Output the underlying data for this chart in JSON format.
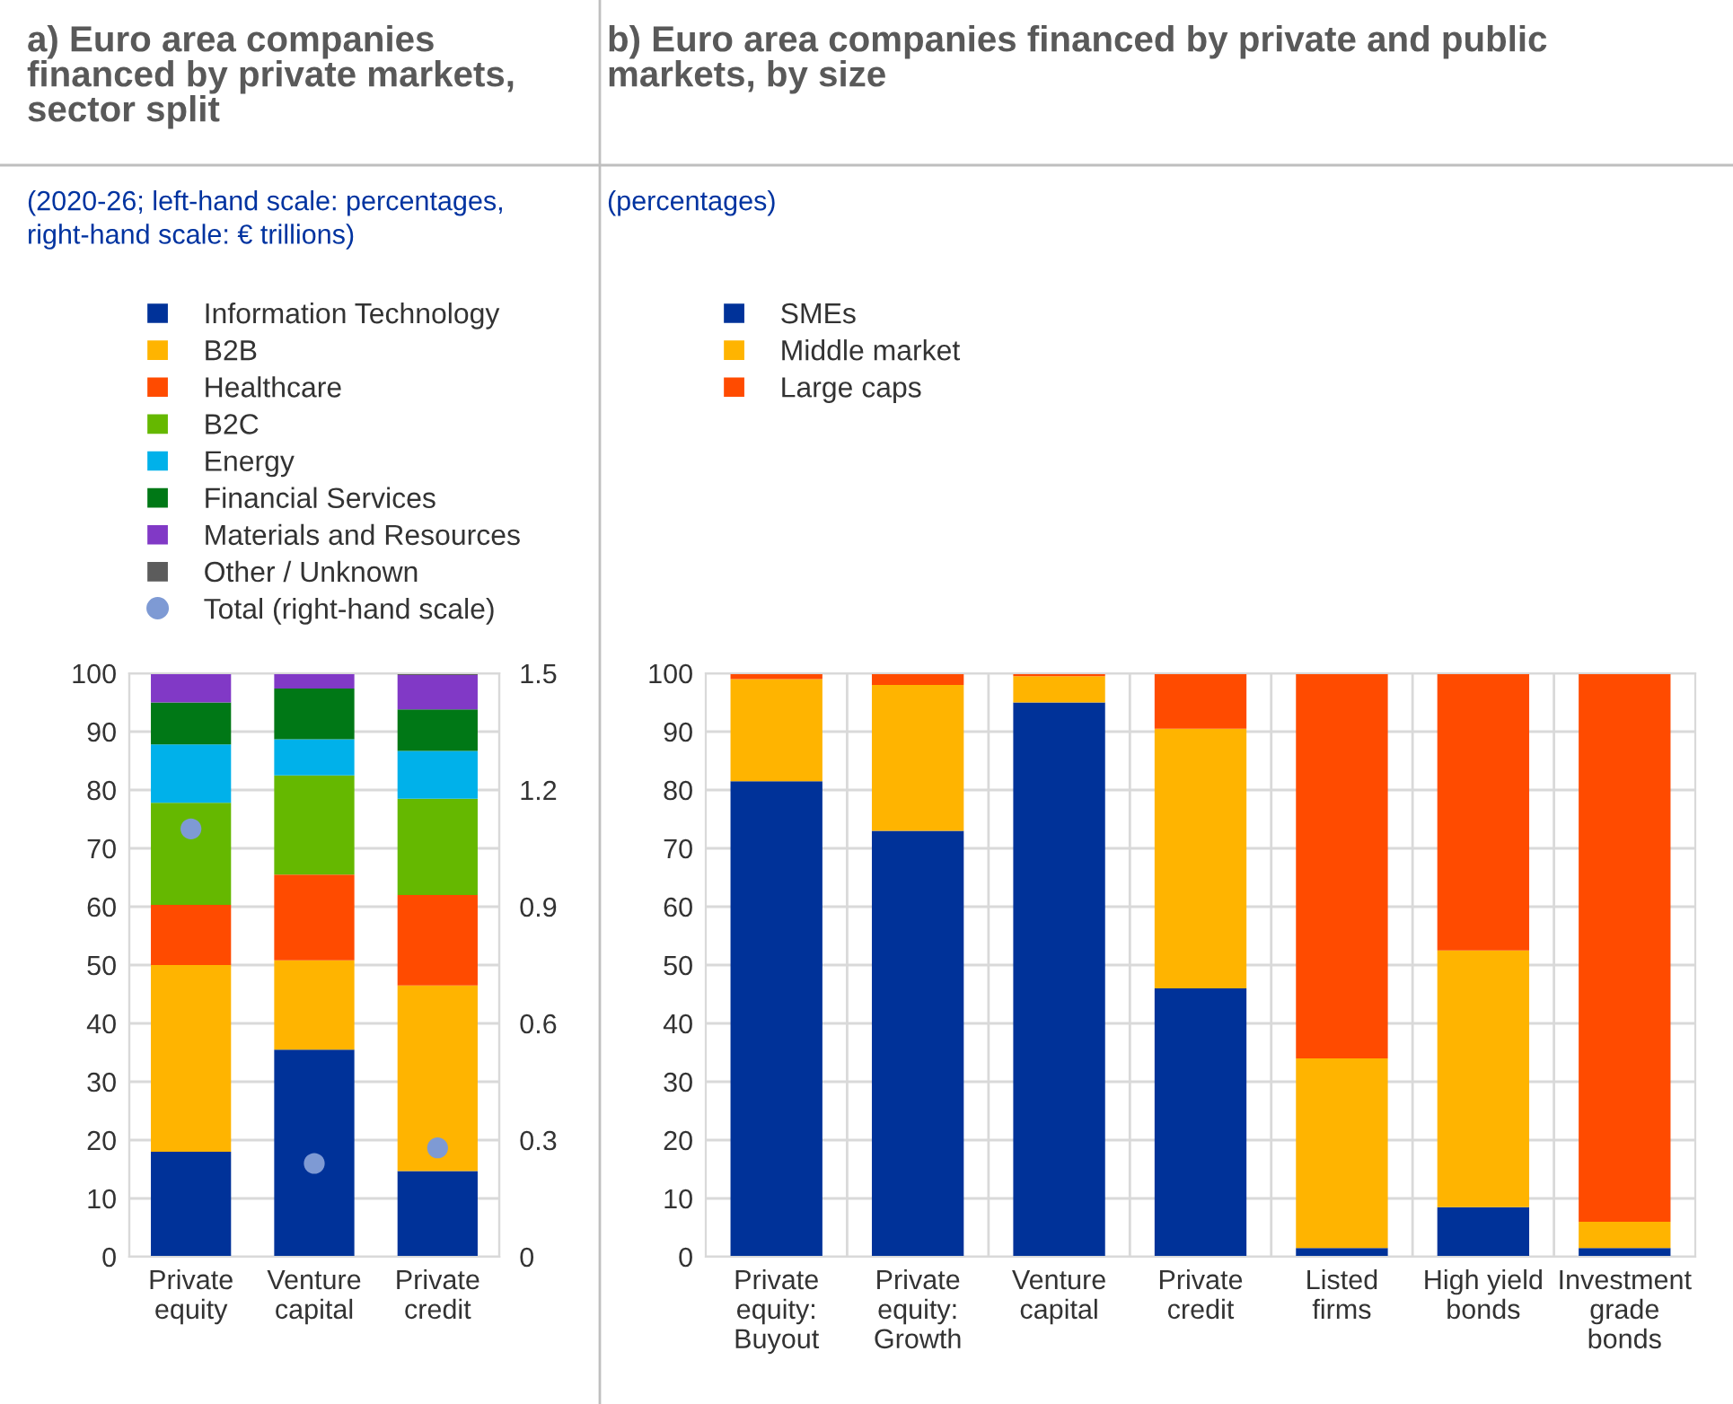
{
  "chart_data": [
    {
      "type": "bar",
      "title": "a) Euro area companies\nfinanced by private markets,\nsector split",
      "subtitle": "(2020-26; left-hand scale: percentages,\nright-hand scale: € trillions)",
      "stacked": true,
      "categories": [
        "Private\nequity",
        "Venture\ncapital",
        "Private\ncredit"
      ],
      "ylim": [
        0,
        100
      ],
      "yticks": [
        0,
        10,
        20,
        30,
        40,
        50,
        60,
        70,
        80,
        90,
        100
      ],
      "y2lim": [
        0,
        1.5
      ],
      "y2ticks": [
        {
          "value": 0,
          "label": "0"
        },
        {
          "value": 0.3,
          "label": "0.3"
        },
        {
          "value": 0.6,
          "label": "0.6"
        },
        {
          "value": 0.9,
          "label": "0.9"
        },
        {
          "value": 1.2,
          "label": "1.2"
        },
        {
          "value": 1.5,
          "label": "1.5"
        }
      ],
      "grid": true,
      "legend": "top",
      "series": [
        {
          "name": "Information Technology",
          "color": "#003299",
          "values": [
            18,
            35.5,
            14.7
          ]
        },
        {
          "name": "B2B",
          "color": "#ffb400",
          "values": [
            32,
            15.3,
            31.8
          ]
        },
        {
          "name": "Healthcare",
          "color": "#ff4b00",
          "values": [
            10.3,
            14.7,
            15.5
          ]
        },
        {
          "name": "B2C",
          "color": "#65b800",
          "values": [
            17.5,
            17,
            16.5
          ]
        },
        {
          "name": "Energy",
          "color": "#00b1ea",
          "values": [
            10,
            6.2,
            8.2
          ]
        },
        {
          "name": "Financial Services",
          "color": "#007816",
          "values": [
            7.2,
            8.7,
            7.1
          ]
        },
        {
          "name": "Materials and Resources",
          "color": "#8139c6",
          "values": [
            5,
            2.6,
            5.9
          ]
        },
        {
          "name": "Other / Unknown",
          "color": "#5c5c5c",
          "values": [
            0,
            0,
            0.3
          ]
        },
        {
          "name": "Total (right-hand scale)",
          "type": "scatter",
          "axis": "y2",
          "marker": "circle",
          "color": "#7e9ad4",
          "values": [
            1.1,
            0.24,
            0.28
          ]
        }
      ]
    },
    {
      "type": "bar",
      "title": "b) Euro area companies financed by private and public\nmarkets, by size",
      "subtitle": "(percentages)",
      "stacked": true,
      "categories": [
        "Private\nequity:\nBuyout",
        "Private\nequity:\nGrowth",
        "Venture\ncapital",
        "Private\ncredit",
        "Listed\nfirms",
        "High yield\nbonds",
        "Investment\ngrade\nbonds"
      ],
      "ylim": [
        0,
        100
      ],
      "yticks": [
        0,
        10,
        20,
        30,
        40,
        50,
        60,
        70,
        80,
        90,
        100
      ],
      "grid": true,
      "legend": "top",
      "series": [
        {
          "name": "SMEs",
          "color": "#003299",
          "values": [
            81.5,
            73,
            95,
            46,
            1.5,
            8.5,
            1.5
          ]
        },
        {
          "name": "Middle market",
          "color": "#ffb400",
          "values": [
            17.5,
            25,
            4.5,
            44.5,
            32.5,
            44,
            4.5
          ]
        },
        {
          "name": "Large caps",
          "color": "#ff4b00",
          "values": [
            1,
            2,
            0.5,
            9.5,
            66,
            47.5,
            94
          ]
        }
      ]
    }
  ]
}
